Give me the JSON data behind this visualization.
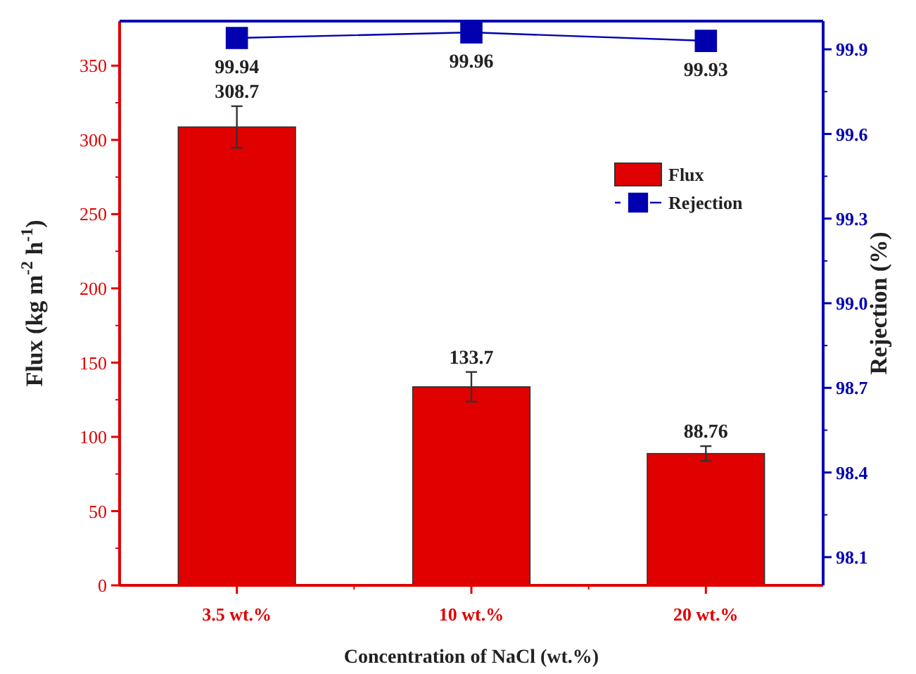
{
  "chart_data": {
    "type": "bar",
    "xlabel": "Concentration of NaCl (wt.%)",
    "ylabel": "Flux (kg m$^{-2}$ h$^{-1}$)",
    "y2label": "Rejection (%)",
    "categories": [
      "3.5 wt.%",
      "10 wt.%",
      "20 wt.%"
    ],
    "series": [
      {
        "name": "Flux",
        "color": "#e00000",
        "values": [
          308.7,
          133.7,
          88.76
        ],
        "errors": [
          14,
          10,
          5
        ]
      },
      {
        "name": "Rejection",
        "type": "line",
        "axis": "y2",
        "color": "#0000b0",
        "values": [
          99.94,
          99.96,
          99.93
        ],
        "marker": "square"
      }
    ],
    "ylim": [
      0,
      380
    ],
    "yticks": [
      0,
      50,
      100,
      150,
      200,
      250,
      300,
      350
    ],
    "y2lim": [
      98,
      100
    ],
    "y2ticks": [
      98.1,
      98.4,
      98.7,
      {
        "value": 99,
        "label": "99.0"
      },
      99.3,
      99.6,
      99.9
    ],
    "data_labels": true,
    "legend": "top right",
    "grid": false
  }
}
